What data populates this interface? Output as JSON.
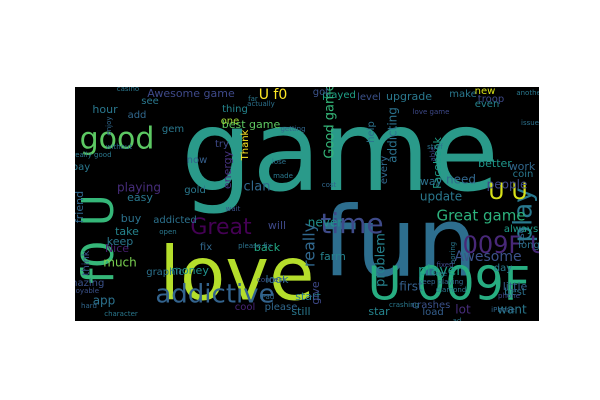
{
  "colors": {
    "background": "#ffffff",
    "panel": "#000000"
  },
  "words": [
    {
      "text": "game",
      "tier": 1,
      "color": "#2a9a8a"
    },
    {
      "text": "fun",
      "tier": 2,
      "color": "#2d6e8e"
    },
    {
      "text": "love",
      "tier": 2,
      "color": "#b5de2b"
    },
    {
      "text": "U 009F",
      "tier": 3,
      "color": "#27ad81"
    },
    {
      "text": "f0 U",
      "tier": 3,
      "color": "#35b779"
    },
    {
      "text": "good",
      "tier": 4,
      "color": "#5cc863"
    },
    {
      "text": "addictive",
      "tier": 4,
      "color": "#33638d"
    },
    {
      "text": "time",
      "tier": 4,
      "color": "#3e4a89"
    },
    {
      "text": "play",
      "tier": 4,
      "color": "#29788e"
    },
    {
      "text": "Great",
      "tier": 4,
      "color": "#440154"
    },
    {
      "text": "009F U",
      "tier": 4,
      "color": "#482878"
    },
    {
      "text": "U U",
      "tier": 4,
      "color": "#d8e219"
    },
    {
      "text": "Great game",
      "tier": 5,
      "color": "#2db27d"
    },
    {
      "text": "Good game",
      "tier": 5,
      "color": "#35b779"
    },
    {
      "text": "really",
      "tier": 5,
      "color": "#31688e"
    },
    {
      "text": "Awesome",
      "tier": 5,
      "color": "#3b528b"
    },
    {
      "text": "U f0",
      "tier": 5,
      "color": "#fde725"
    },
    {
      "text": "addicting",
      "tier": 5,
      "color": "#2c728e"
    },
    {
      "text": "problem",
      "tier": 5,
      "color": "#26828e"
    },
    {
      "text": "player",
      "tier": 5,
      "color": "#1f9e89"
    },
    {
      "text": "Awesome game",
      "tier": 6,
      "color": "#3e4989"
    },
    {
      "text": "playing",
      "tier": 6,
      "color": "#472d7b"
    },
    {
      "text": "best game",
      "tier": 6,
      "color": "#5ec962"
    },
    {
      "text": "never",
      "tier": 6,
      "color": "#21918c"
    },
    {
      "text": "upgrade",
      "tier": 6,
      "color": "#2a788e"
    },
    {
      "text": "played",
      "tier": 6,
      "color": "#1fa187"
    },
    {
      "text": "level",
      "tier": 6,
      "color": "#3b528b"
    },
    {
      "text": "Facebook",
      "tier": 6,
      "color": "#1f9e89"
    },
    {
      "text": "clan",
      "tier": 6,
      "color": "#31688e"
    },
    {
      "text": "app",
      "tier": 6,
      "color": "#2c728e"
    },
    {
      "text": "much",
      "tier": 6,
      "color": "#7ad151"
    },
    {
      "text": "make",
      "tier": 6,
      "color": "#2a788e"
    },
    {
      "text": "people",
      "tier": 6,
      "color": "#3e4989"
    },
    {
      "text": "money",
      "tier": 6,
      "color": "#21918c"
    },
    {
      "text": "cool",
      "tier": 6,
      "color": "#482475"
    },
    {
      "text": "energy",
      "tier": 6,
      "color": "#46327e"
    },
    {
      "text": "first",
      "tier": 6,
      "color": "#355f8d"
    },
    {
      "text": "star",
      "tier": 6,
      "color": "#25858e"
    },
    {
      "text": "update",
      "tier": 6,
      "color": "#2a788e"
    },
    {
      "text": "need",
      "tier": 6,
      "color": "#31688e"
    },
    {
      "text": "better",
      "tier": 6,
      "color": "#1f988b"
    },
    {
      "text": "little",
      "tier": 6,
      "color": "#34618d"
    },
    {
      "text": "want",
      "tier": 6,
      "color": "#2a788e"
    },
    {
      "text": "work",
      "tier": 6,
      "color": "#31688e"
    },
    {
      "text": "long",
      "tier": 6,
      "color": "#2c728e"
    },
    {
      "text": "Nice",
      "tier": 6,
      "color": "#481f70"
    },
    {
      "text": "hour",
      "tier": 6,
      "color": "#2a788e"
    },
    {
      "text": "friend",
      "tier": 6,
      "color": "#31688e"
    },
    {
      "text": "think",
      "tier": 6,
      "color": "#3b528b"
    },
    {
      "text": "take",
      "tier": 6,
      "color": "#25858e"
    },
    {
      "text": "keep",
      "tier": 6,
      "color": "#2a788e"
    },
    {
      "text": "will",
      "tier": 6,
      "color": "#3e4989"
    },
    {
      "text": "back",
      "tier": 6,
      "color": "#22a884"
    },
    {
      "text": "look",
      "tier": 6,
      "color": "#2d708e"
    },
    {
      "text": "start",
      "tier": 6,
      "color": "#2a788e"
    },
    {
      "text": "farm",
      "tier": 6,
      "color": "#26828e"
    },
    {
      "text": "fix",
      "tier": 6,
      "color": "#31688e"
    },
    {
      "text": "gem",
      "tier": 6,
      "color": "#2a788e"
    },
    {
      "text": "now",
      "tier": 6,
      "color": "#355f8d"
    },
    {
      "text": "buy",
      "tier": 6,
      "color": "#2c728e"
    },
    {
      "text": "easy",
      "tier": 6,
      "color": "#2a788e"
    },
    {
      "text": "troop",
      "tier": 6,
      "color": "#3e4989"
    },
    {
      "text": "new",
      "tier": 6,
      "color": "#d8e219"
    },
    {
      "text": "even",
      "tier": 6,
      "color": "#26828e"
    },
    {
      "text": "day",
      "tier": 6,
      "color": "#2a788e"
    },
    {
      "text": "best",
      "tier": 6,
      "color": "#2c728e"
    },
    {
      "text": "lot",
      "tier": 6,
      "color": "#472d7b"
    },
    {
      "text": "load",
      "tier": 6,
      "color": "#355f8d"
    },
    {
      "text": "still",
      "tier": 6,
      "color": "#2a788e"
    },
    {
      "text": "crashes",
      "tier": 6,
      "color": "#3b528b"
    },
    {
      "text": "please",
      "tier": 6,
      "color": "#31688e"
    },
    {
      "text": "way",
      "tier": 6,
      "color": "#2c728e"
    },
    {
      "text": "try",
      "tier": 6,
      "color": "#3e4989"
    },
    {
      "text": "one",
      "tier": 6,
      "color": "#a0da39"
    },
    {
      "text": "thing",
      "tier": 6,
      "color": "#25858e"
    },
    {
      "text": "see",
      "tier": 6,
      "color": "#2a788e"
    },
    {
      "text": "add",
      "tier": 6,
      "color": "#31688e"
    },
    {
      "text": "got",
      "tier": 6,
      "color": "#3b528b"
    },
    {
      "text": "help",
      "tier": 6,
      "color": "#2c728e"
    },
    {
      "text": "always",
      "tier": 6,
      "color": "#1f9e89"
    },
    {
      "text": "coin",
      "tier": 6,
      "color": "#2a788e"
    },
    {
      "text": "use",
      "tier": 6,
      "color": "#31688e"
    },
    {
      "text": "give",
      "tier": 6,
      "color": "#3e4989"
    },
    {
      "text": "graphic",
      "tier": 6,
      "color": "#2c728e"
    },
    {
      "text": "gold",
      "tier": 6,
      "color": "#2a788e"
    },
    {
      "text": "Thank",
      "tier": 6,
      "color": "#fde725"
    },
    {
      "text": "amazing",
      "tier": 6,
      "color": "#3b528b"
    },
    {
      "text": "pay",
      "tier": 6,
      "color": "#2a788e"
    },
    {
      "text": "every",
      "tier": 6,
      "color": "#31688e"
    },
    {
      "text": "addicted",
      "tier": 6,
      "color": "#2c728e"
    },
    {
      "text": "able",
      "tier": 6,
      "color": "#3e4989"
    },
    {
      "text": "character",
      "tier": 7,
      "color": "#2a788e"
    },
    {
      "text": "getting",
      "tier": 7,
      "color": "#31688e"
    },
    {
      "text": "issue",
      "tier": 7,
      "color": "#2c728e"
    },
    {
      "text": "free",
      "tier": 7,
      "color": "#2a788e"
    },
    {
      "text": "phone",
      "tier": 7,
      "color": "#3e4989"
    },
    {
      "text": "hard",
      "tier": 7,
      "color": "#31688e"
    },
    {
      "text": "made",
      "tier": 7,
      "color": "#2a788e"
    },
    {
      "text": "wait",
      "tier": 7,
      "color": "#3b528b"
    },
    {
      "text": "stuff",
      "tier": 7,
      "color": "#2c728e"
    },
    {
      "text": "far",
      "tier": 7,
      "color": "#2a788e"
    },
    {
      "text": "iPad",
      "tier": 7,
      "color": "#31688e"
    },
    {
      "text": "open",
      "tier": 7,
      "color": "#2a788e"
    },
    {
      "text": "love game",
      "tier": 7,
      "color": "#3e4989"
    },
    {
      "text": "please fix",
      "tier": 7,
      "color": "#2c728e"
    },
    {
      "text": "keep playing",
      "tier": 7,
      "color": "#31688e"
    },
    {
      "text": "diamond",
      "tier": 7,
      "color": "#2a788e"
    },
    {
      "text": "connect",
      "tier": 7,
      "color": "#3b528b"
    },
    {
      "text": "without",
      "tier": 7,
      "color": "#2c728e"
    },
    {
      "text": "boring",
      "tier": 7,
      "color": "#2a788e"
    },
    {
      "text": "enjoy",
      "tier": 7,
      "color": "#31688e"
    },
    {
      "text": "crashing",
      "tier": 7,
      "color": "#2a788e"
    },
    {
      "text": "fixed",
      "tier": 7,
      "color": "#3e4989"
    },
    {
      "text": "lose",
      "tier": 7,
      "color": "#2c728e"
    },
    {
      "text": "another",
      "tier": 7,
      "color": "#2a788e"
    },
    {
      "text": "cost",
      "tier": 7,
      "color": "#31688e"
    },
    {
      "text": "really good",
      "tier": 7,
      "color": "#2a788e"
    },
    {
      "text": "enjoyable",
      "tier": 7,
      "color": "#3b528b"
    },
    {
      "text": "actually",
      "tier": 7,
      "color": "#2c728e"
    },
    {
      "text": "ad",
      "tier": 7,
      "color": "#2a788e"
    },
    {
      "text": "iPhone",
      "tier": 7,
      "color": "#31688e"
    },
    {
      "text": "casino",
      "tier": 7,
      "color": "#2a788e"
    }
  ]
}
